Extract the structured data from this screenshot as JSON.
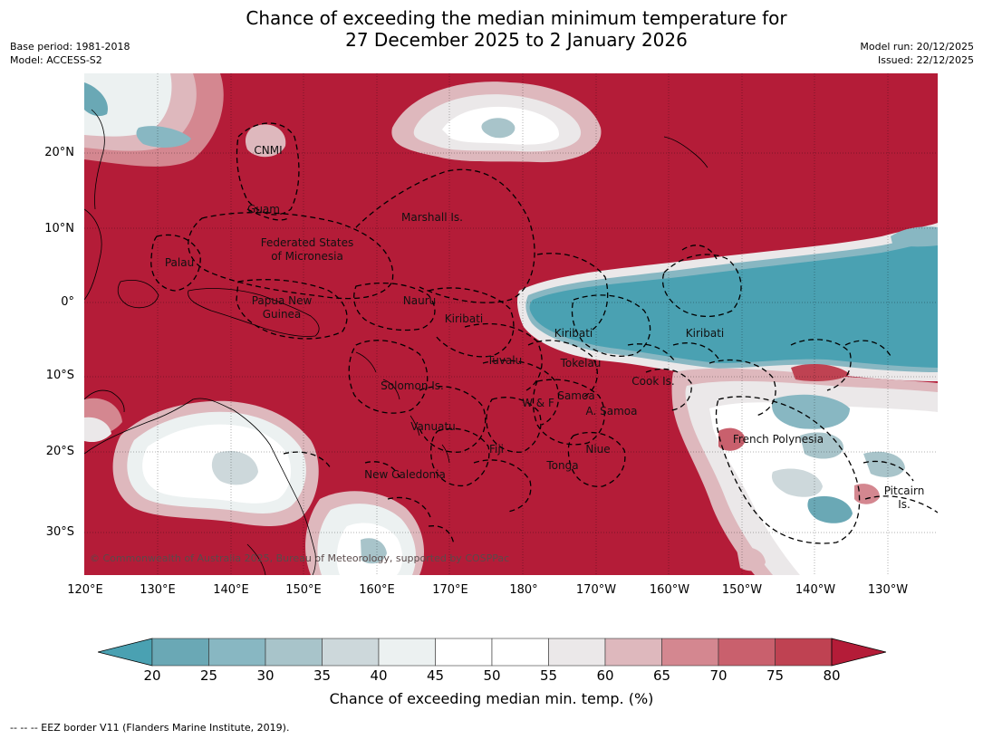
{
  "title": {
    "line1": "Chance of exceeding the median minimum temperature for",
    "line2": "27 December 2025 to 2 January 2026"
  },
  "meta": {
    "base_period": "Base period: 1981-2018",
    "model": "Model: ACCESS-S2",
    "model_run": "Model run: 20/12/2025",
    "issued": "Issued: 22/12/2025"
  },
  "axes": {
    "latitudes": [
      "20°N",
      "10°N",
      "0°",
      "10°S",
      "20°S",
      "30°S"
    ],
    "longitudes": [
      "120°E",
      "130°E",
      "140°E",
      "150°E",
      "160°E",
      "170°E",
      "180°",
      "170°W",
      "160°W",
      "150°W",
      "140°W",
      "130°W"
    ]
  },
  "regions": [
    "CNMI",
    "Guam",
    "Marshall Is.",
    "Federated States",
    "of Micronesia",
    "Palau",
    "Papua New",
    "Guinea",
    "Nauru",
    "Kiribati",
    "Kiribati",
    "Kiribati",
    "Tuvalu",
    "Tokelau",
    "Cook Is.",
    "Solomon Is.",
    "Samoa",
    "W & F",
    "A. Samoa",
    "Vanuatu",
    "Fiji",
    "Niue",
    "Tonga",
    "French Polynesia",
    "New Caledonia",
    "Pitcairn",
    "Is."
  ],
  "copyright": "© Commonwealth of Australia 2025, Bureau of Meteorology, supported by COSPPac",
  "colorbar": {
    "title": "Chance of exceeding median min. temp. (%)",
    "ticks": [
      "20",
      "25",
      "30",
      "35",
      "40",
      "45",
      "50",
      "55",
      "60",
      "65",
      "70",
      "75",
      "80"
    ],
    "colors": [
      "#4aa1b2",
      "#6aa8b5",
      "#88b7c2",
      "#a8c4ca",
      "#cdd8db",
      "#ecf1f1",
      "#ffffff",
      "#ffffff",
      "#ebe8e9",
      "#deb8bd",
      "#d48790",
      "#c9606d",
      "#bf4252",
      "#b41c38"
    ]
  },
  "footnote": "--  --  -- EEZ border V11 (Flanders Marine Institute, 2019)."
}
